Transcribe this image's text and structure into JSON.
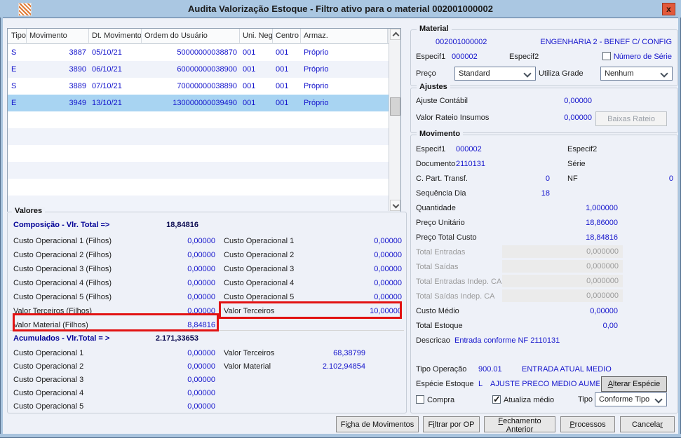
{
  "window": {
    "title": "Audita Valorização Estoque - Filtro ativo para o material 002001000002",
    "close_glyph": "x"
  },
  "colors": {
    "value_blue": "#1414cc",
    "section_navy": "#000096",
    "selected_row": "#a8d4f2",
    "highlight_red": "#e21212",
    "titlebar": "#aac7e2"
  },
  "table": {
    "headers": [
      "Tipo",
      "Movimento",
      "Dt. Movimento",
      "Ordem do Usuário",
      "Uni. Neg.",
      "Centro",
      "Armaz."
    ],
    "rows": [
      {
        "tipo": "S",
        "movimento": "3887",
        "dt": "05/10/21",
        "ordem": "50000000038870",
        "uni": "001",
        "centro": "001",
        "armaz": "Próprio",
        "selected": false
      },
      {
        "tipo": "E",
        "movimento": "3890",
        "dt": "06/10/21",
        "ordem": "60000000038900",
        "uni": "001",
        "centro": "001",
        "armaz": "Próprio",
        "selected": false
      },
      {
        "tipo": "S",
        "movimento": "3889",
        "dt": "07/10/21",
        "ordem": "70000000038890",
        "uni": "001",
        "centro": "001",
        "armaz": "Próprio",
        "selected": false
      },
      {
        "tipo": "E",
        "movimento": "3949",
        "dt": "13/10/21",
        "ordem": "130000000039490",
        "uni": "001",
        "centro": "001",
        "armaz": "Próprio",
        "selected": true
      }
    ]
  },
  "material": {
    "title": "Material",
    "code": "002001000002",
    "description": "ENGENHARIA 2 - BENEF C/ CONFIG",
    "especif1_label": "Especif1",
    "especif1_value": "000002",
    "especif2_label": "Especif2",
    "numero_serie_label": "Número de Série",
    "numero_serie_checked": false,
    "preco_label": "Preço",
    "preco_value": "Standard",
    "utiliza_grade_label": "Utiliza Grade",
    "utiliza_grade_value": "Nenhum"
  },
  "ajustes": {
    "title": "Ajustes",
    "ajuste_contabil_label": "Ajuste Contábil",
    "ajuste_contabil_value": "0,00000",
    "valor_rateio_label": "Valor Rateio Insumos",
    "valor_rateio_value": "0,00000",
    "baixas_rateio_button": "Baixas Rateio"
  },
  "movimento": {
    "title": "Movimento",
    "rows": [
      {
        "type": "pair",
        "l1": "Especif1",
        "v1": "000002",
        "l2": "Especif2",
        "v2": ""
      },
      {
        "type": "pair",
        "l1": "Documento",
        "v1": "2110131",
        "l2": "Série",
        "v2": ""
      },
      {
        "type": "pairnum",
        "l1": "C. Part. Transf.",
        "v1": "0",
        "l2": "NF",
        "v2": "0"
      },
      {
        "type": "numshort",
        "label": "Sequência Dia",
        "value": "18"
      },
      {
        "type": "num",
        "label": "Quantidade",
        "value": "1,000000"
      },
      {
        "type": "num",
        "label": "Preço Unitário",
        "value": "18,86000"
      },
      {
        "type": "num",
        "label": "Preço Total Custo",
        "value": "18,84816"
      },
      {
        "type": "numdis",
        "label": "Total Entradas",
        "value": "0,000000"
      },
      {
        "type": "numdis",
        "label": "Total Saídas",
        "value": "0,000000"
      },
      {
        "type": "numdis",
        "label": "Total Entradas Indep. CA",
        "value": "0,000000"
      },
      {
        "type": "numdis",
        "label": "Total Saídas Indep. CA",
        "value": "0,000000"
      },
      {
        "type": "num",
        "label": "Custo Médio",
        "value": "0,00000"
      },
      {
        "type": "num",
        "label": "Total Estoque",
        "value": "0,00"
      },
      {
        "type": "desc",
        "label": "Descricao",
        "value": "Entrada conforme NF 2110131"
      }
    ],
    "tipo_operacao_label": "Tipo Operação",
    "tipo_operacao_code": "900.01",
    "tipo_operacao_desc": "ENTRADA ATUAL MEDIO",
    "especie_label": "Espécie Estoque",
    "especie_code": "L",
    "especie_desc": "AJUSTE PRECO MEDIO AUMENTA",
    "alterar_especie_button": {
      "label": "Alterar Espécie",
      "mnemonic": 0
    },
    "compra_label": "Compra",
    "compra_checked": false,
    "atualiza_label": "Atualiza médio",
    "atualiza_checked": true,
    "tipo_label": "Tipo",
    "tipo_value": "Conforme Tipo"
  },
  "valores": {
    "title": "Valores",
    "composicao": {
      "title": "Composição - Vlr. Total =>",
      "total": "18,84816",
      "left": [
        {
          "label": "Custo Operacional 1 (Filhos)",
          "value": "0,00000"
        },
        {
          "label": "Custo Operacional 2 (Filhos)",
          "value": "0,00000"
        },
        {
          "label": "Custo Operacional 3 (Filhos)",
          "value": "0,00000"
        },
        {
          "label": "Custo Operacional 4 (Filhos)",
          "value": "0,00000"
        },
        {
          "label": "Custo Operacional 5 (Filhos)",
          "value": "0,00000"
        },
        {
          "label": "Valor Terceiros (Filhos)",
          "value": "0,00000"
        },
        {
          "label": "Valor Material (Filhos)",
          "value": "8,84816",
          "highlight": true
        }
      ],
      "right": [
        {
          "label": "Custo Operacional 1",
          "value": "0,00000"
        },
        {
          "label": "Custo Operacional 2",
          "value": "0,00000"
        },
        {
          "label": "Custo Operacional 3",
          "value": "0,00000"
        },
        {
          "label": "Custo Operacional 4",
          "value": "0,00000"
        },
        {
          "label": "Custo Operacional 5",
          "value": "0,00000"
        },
        {
          "label": "Valor Terceiros",
          "value": "10,00000",
          "highlight": true
        }
      ]
    },
    "acumulados": {
      "title": "Acumulados - Vlr.Total = >",
      "total": "2.171,33653",
      "left": [
        {
          "label": "Custo Operacional 1",
          "value": "0,00000"
        },
        {
          "label": "Custo Operacional 2",
          "value": "0,00000"
        },
        {
          "label": "Custo Operacional 3",
          "value": "0,00000"
        },
        {
          "label": "Custo Operacional 4",
          "value": "0,00000"
        },
        {
          "label": "Custo Operacional 5",
          "value": "0,00000"
        }
      ],
      "right": [
        {
          "label": "Valor Terceiros",
          "value": "68,38799"
        },
        {
          "label": "Valor Material",
          "value": "2.102,94854"
        }
      ]
    }
  },
  "footer": {
    "buttons": [
      {
        "label": "Ficha de Movimentos",
        "mnemonic": 2
      },
      {
        "label": "Filtrar por OP",
        "mnemonic": 1
      },
      {
        "label": "Fechamento Anterior",
        "mnemonic": 0
      },
      {
        "label": "Processos",
        "mnemonic": 0
      },
      {
        "label": "Cancelar",
        "mnemonic": 7
      }
    ]
  }
}
